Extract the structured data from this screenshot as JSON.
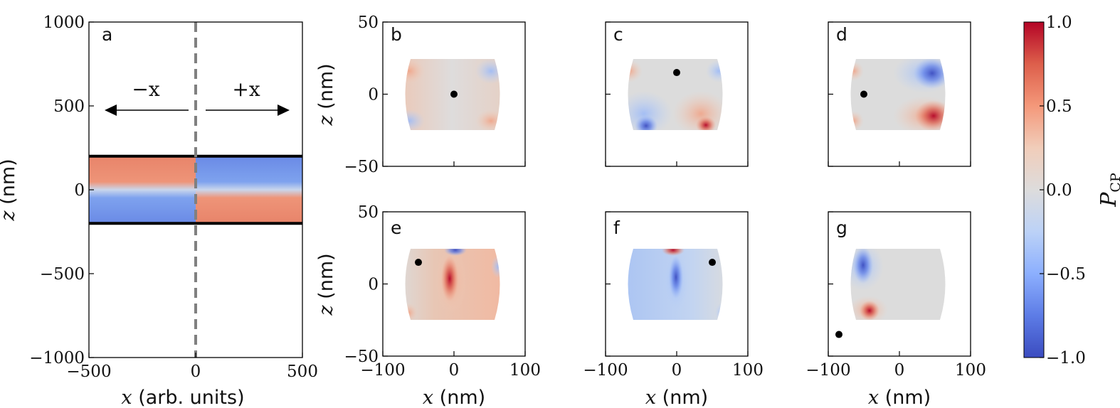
{
  "chart_data": [
    {
      "panel": "a",
      "type": "heatmap",
      "xlabel_var": "x",
      "xlabel_unit": "(arb. units)",
      "ylabel_var": "z",
      "ylabel_unit": "(nm)",
      "xlim": [
        -500,
        500
      ],
      "ylim": [
        -1000,
        1000
      ],
      "xticks": [
        "−500",
        "0",
        "500"
      ],
      "yticks": [
        "1000",
        "500",
        "0",
        "−500",
        "−1000"
      ],
      "xtick_values": [
        -500,
        0,
        500
      ],
      "ytick_values": [
        1000,
        500,
        0,
        -500,
        -1000
      ],
      "film_z_range": [
        -200,
        200
      ],
      "divider_x": 0,
      "left_region": {
        "label": "−x",
        "top_value": 0.45,
        "bottom_value": -0.55
      },
      "right_region": {
        "label": "+x",
        "top_value": -0.55,
        "bottom_value": 0.45
      }
    },
    {
      "panel": "b",
      "type": "heatmap",
      "dot": [
        0,
        0
      ],
      "show_y_axis": true,
      "show_x_axis": false
    },
    {
      "panel": "c",
      "type": "heatmap",
      "dot": [
        0,
        15
      ],
      "show_y_axis": false,
      "show_x_axis": false
    },
    {
      "panel": "d",
      "type": "heatmap",
      "dot": [
        -50,
        0
      ],
      "show_y_axis": false,
      "show_x_axis": false
    },
    {
      "panel": "e",
      "type": "heatmap",
      "dot": [
        -50,
        15
      ],
      "show_y_axis": true,
      "show_x_axis": true
    },
    {
      "panel": "f",
      "type": "heatmap",
      "dot": [
        50,
        15
      ],
      "show_y_axis": false,
      "show_x_axis": true
    },
    {
      "panel": "g",
      "type": "heatmap",
      "dot": [
        -85,
        -35
      ],
      "show_y_axis": false,
      "show_x_axis": true
    }
  ],
  "small_panels_axes": {
    "xlim": [
      -100,
      100
    ],
    "ylim": [
      -50,
      50
    ],
    "xticks": [
      "−100",
      "0",
      "100"
    ],
    "xtick_values": [
      -100,
      0,
      100
    ],
    "yticks": [
      "50",
      "0",
      "−50"
    ],
    "ytick_values": [
      50,
      0,
      -50
    ],
    "xlabel_var": "x",
    "xlabel_unit": "(nm)",
    "ylabel_var": "z",
    "ylabel_unit": "(nm)",
    "sample_x_range": [
      -75,
      75
    ],
    "sample_z_range": [
      -25,
      25
    ]
  },
  "colorbar": {
    "label_main": "P",
    "label_sub": "CP",
    "range": [
      -1.0,
      1.0
    ],
    "ticks": [
      "1.0",
      "0.5",
      "0.0",
      "−0.5",
      "−1.0"
    ],
    "tick_values": [
      1.0,
      0.5,
      0.0,
      -0.5,
      -1.0
    ],
    "colormap": "coolwarm"
  }
}
